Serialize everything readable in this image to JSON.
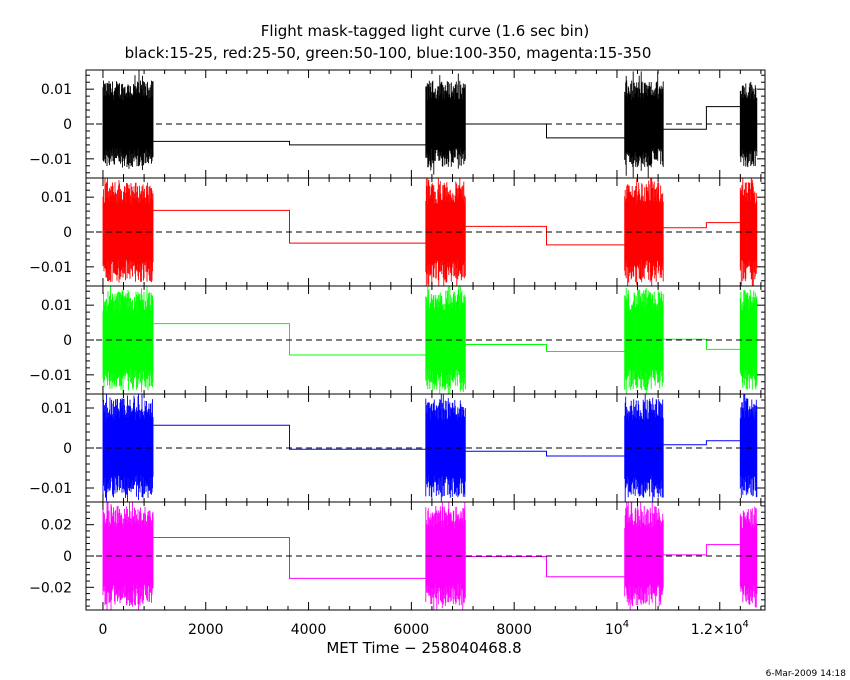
{
  "chart_data": {
    "type": "line",
    "title": "Flight mask-tagged light curve (1.6 sec bin)",
    "subtitle": "black:15-25, red:25-50, green:50-100, blue:100-350, magenta:15-350",
    "xlabel": "MET Time − 258040468.8",
    "timestamp": "6-Mar-2009 14:18",
    "xlim": [
      -330,
      12880
    ],
    "x_ticks": [
      {
        "value": 0,
        "label": "0"
      },
      {
        "value": 2000,
        "label": "2000"
      },
      {
        "value": 4000,
        "label": "4000"
      },
      {
        "value": 6000,
        "label": "6000"
      },
      {
        "value": 8000,
        "label": "8000"
      },
      {
        "value": 10000,
        "label": "10",
        "exp": "4"
      },
      {
        "value": 12000,
        "label": "1.2×10",
        "exp": "4"
      }
    ],
    "grid": false,
    "zero_line": "dashed",
    "segments": [
      [
        0,
        980
      ],
      [
        6280,
        7050
      ],
      [
        10150,
        10900
      ],
      [
        12400,
        12730
      ]
    ],
    "panels": [
      {
        "name": "black:15-25",
        "color": "#000000",
        "ylim": [
          -0.0155,
          0.0155
        ],
        "y_ticks": [
          {
            "value": 0.01,
            "label": "0.01"
          },
          {
            "value": 0,
            "label": "0"
          },
          {
            "value": -0.01,
            "label": "−0.01"
          }
        ],
        "noise_amp": 0.0125,
        "steps": [
          [
            980,
            3630,
            -0.005
          ],
          [
            3630,
            6280,
            -0.006
          ],
          [
            7050,
            8630,
            0.0
          ],
          [
            8630,
            10150,
            -0.004
          ],
          [
            10900,
            11740,
            -0.0015
          ],
          [
            11740,
            12400,
            0.005
          ]
        ]
      },
      {
        "name": "red:25-50",
        "color": "#ff0000",
        "ylim": [
          -0.0155,
          0.0155
        ],
        "y_ticks": [
          {
            "value": 0.01,
            "label": "0.01"
          },
          {
            "value": 0,
            "label": "0"
          },
          {
            "value": -0.01,
            "label": "−0.01"
          }
        ],
        "noise_amp": 0.0145,
        "steps": [
          [
            980,
            3630,
            0.0062
          ],
          [
            3630,
            6280,
            -0.0032
          ],
          [
            7050,
            8630,
            0.0016
          ],
          [
            8630,
            10150,
            -0.0037
          ],
          [
            10900,
            11740,
            0.0012
          ],
          [
            11740,
            12400,
            0.0027
          ]
        ]
      },
      {
        "name": "green:50-100",
        "color": "#00ff00",
        "ylim": [
          -0.0155,
          0.0155
        ],
        "y_ticks": [
          {
            "value": 0.01,
            "label": "0.01"
          },
          {
            "value": 0,
            "label": "0"
          },
          {
            "value": -0.01,
            "label": "−0.01"
          }
        ],
        "noise_amp": 0.0145,
        "steps": [
          [
            980,
            3630,
            0.0047
          ],
          [
            3630,
            6280,
            -0.0043
          ],
          [
            7050,
            8630,
            -0.0013
          ],
          [
            8630,
            10150,
            -0.0033
          ],
          [
            10900,
            11740,
            0.0002
          ],
          [
            11740,
            12400,
            -0.0027
          ]
        ]
      },
      {
        "name": "blue:100-350",
        "color": "#0000ff",
        "ylim": [
          -0.0135,
          0.0135
        ],
        "y_ticks": [
          {
            "value": 0.01,
            "label": "0.01"
          },
          {
            "value": 0,
            "label": "0"
          },
          {
            "value": -0.01,
            "label": "−0.01"
          }
        ],
        "noise_amp": 0.0125,
        "steps": [
          [
            980,
            3630,
            0.0057
          ],
          [
            3630,
            6280,
            -0.0003
          ],
          [
            7050,
            8630,
            -0.0008
          ],
          [
            8630,
            10150,
            -0.002
          ],
          [
            10900,
            11740,
            0.0008
          ],
          [
            11740,
            12400,
            0.0018
          ]
        ]
      },
      {
        "name": "magenta:15-350",
        "color": "#ff00ff",
        "ylim": [
          -0.0345,
          0.0345
        ],
        "y_ticks": [
          {
            "value": 0.02,
            "label": "0.02"
          },
          {
            "value": 0,
            "label": "0"
          },
          {
            "value": -0.02,
            "label": "−0.02"
          }
        ],
        "noise_amp": 0.032,
        "steps": [
          [
            980,
            3630,
            0.0118
          ],
          [
            3630,
            6280,
            -0.0143
          ],
          [
            7050,
            8630,
            -0.0003
          ],
          [
            8630,
            10150,
            -0.0133
          ],
          [
            10900,
            11740,
            0.0007
          ],
          [
            11740,
            12400,
            0.0073
          ]
        ]
      }
    ]
  }
}
